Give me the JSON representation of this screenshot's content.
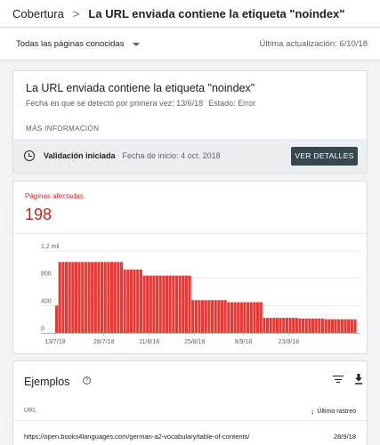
{
  "breadcrumb": {
    "root": "Cobertura",
    "separator": ">",
    "current": "La URL enviada contiene la etiqueta \"noindex\""
  },
  "filter": {
    "selected": "Todas las páginas conocidas",
    "last_update": "Última actualización: 6/10/18"
  },
  "issue": {
    "title": "La URL enviada contiene la etiqueta \"noindex\"",
    "first_detected": "Fecha en que se detectó por primera vez: 13/6/18",
    "status": "Estado: Error",
    "more_info": "MÁS INFORMACIÓN"
  },
  "validation": {
    "label": "Validación iniciada",
    "start_date": "Fecha de inicio: 4 oct. 2018",
    "button": "VER DETALLES"
  },
  "affected": {
    "label": "Páginas afectadas",
    "value": "198"
  },
  "chart_data": {
    "type": "bar",
    "title": "",
    "xlabel": "",
    "ylabel": "",
    "y_ticks": [
      "0",
      "400",
      "800",
      "1,2 mil"
    ],
    "y_tick_values": [
      0,
      400,
      800,
      1200
    ],
    "ylim": [
      0,
      1240
    ],
    "x_tick_labels": [
      "13/7/18",
      "28/7/18",
      "11/8/18",
      "25/8/18",
      "9/9/18",
      "23/9/18"
    ],
    "x_tick_day_index": [
      0,
      15,
      29,
      43,
      58,
      72
    ],
    "grid": true,
    "color": "#e53935",
    "values": [
      400,
      1040,
      1040,
      1040,
      1040,
      1040,
      1040,
      1040,
      1040,
      1040,
      1040,
      1040,
      1040,
      1040,
      1040,
      1040,
      1040,
      1040,
      1040,
      1040,
      1040,
      930,
      930,
      930,
      930,
      930,
      930,
      840,
      840,
      840,
      840,
      840,
      840,
      840,
      840,
      840,
      840,
      840,
      840,
      840,
      840,
      840,
      480,
      480,
      480,
      480,
      480,
      480,
      480,
      480,
      480,
      480,
      480,
      450,
      450,
      450,
      450,
      450,
      450,
      450,
      450,
      450,
      450,
      450,
      220,
      220,
      220,
      220,
      220,
      220,
      220,
      220,
      220,
      220,
      220,
      210,
      210,
      210,
      210,
      210,
      210,
      210,
      210,
      200,
      200,
      200,
      200,
      200,
      200,
      200,
      200,
      198,
      198
    ]
  },
  "examples": {
    "title": "Ejemplos",
    "columns": {
      "url": "URL",
      "crawl": "Último rastreo"
    },
    "rows": [
      {
        "url": "https://open.books4languages.com/german-a2-vocabulary/table-of-contents/",
        "date": "28/9/18"
      }
    ]
  },
  "icons": {
    "help": "help-icon",
    "filter": "filter-icon",
    "download": "download-icon",
    "clock": "clock-icon",
    "sort": "arrow-down-icon"
  }
}
